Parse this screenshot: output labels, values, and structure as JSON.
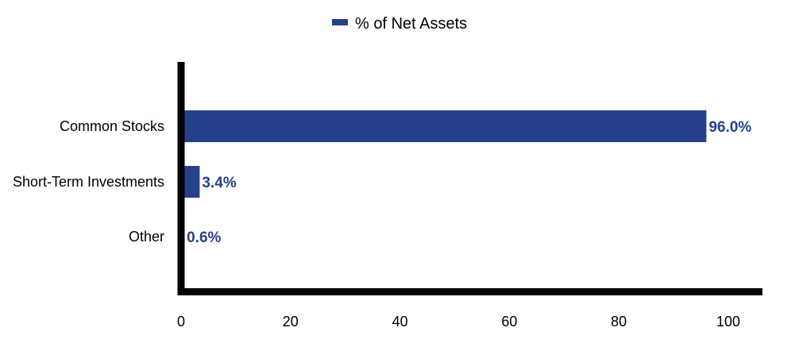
{
  "chart_data": {
    "type": "bar",
    "orientation": "horizontal",
    "categories": [
      "Common Stocks",
      "Short-Term Investments",
      "Other"
    ],
    "series": [
      {
        "name": "% of Net Assets",
        "values": [
          96.0,
          3.4,
          0.6
        ]
      }
    ],
    "data_labels": [
      "96.0%",
      "3.4%",
      "0.6%"
    ],
    "x_ticks": [
      0,
      20,
      40,
      60,
      80,
      100
    ],
    "xlim": [
      0,
      106
    ],
    "legend_placement": "top-center",
    "grid": false,
    "colors": {
      "bar": "#27408b",
      "axis": "#000000",
      "label": "#27408b"
    }
  }
}
